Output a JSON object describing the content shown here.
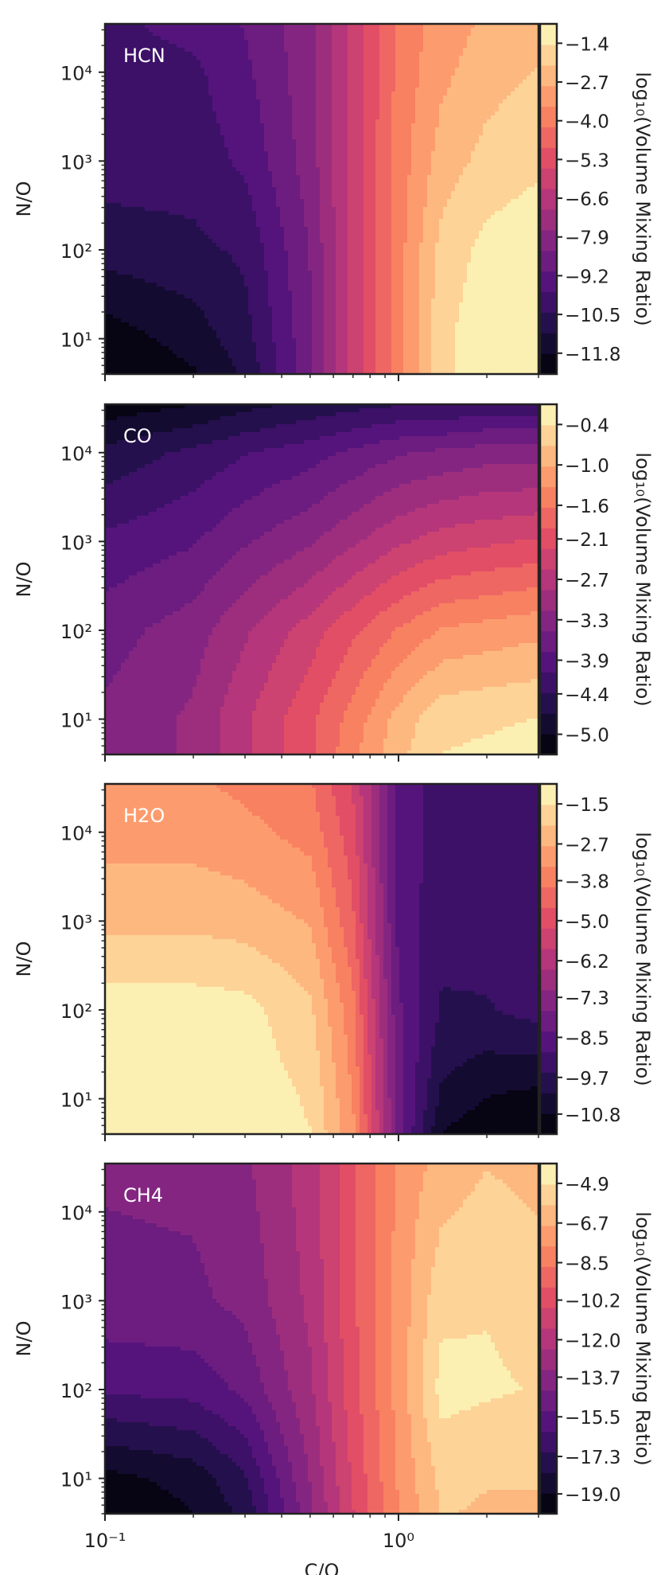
{
  "colors": {
    "colormap": "magma",
    "text_color": "#222222",
    "frame_color": "#222222",
    "panel_label_color": "#ffffff"
  },
  "chart_data": [
    {
      "type": "heatmap",
      "label": "HCN",
      "xlabel": "",
      "ylabel": "N/O",
      "xscale": "log",
      "yscale": "log",
      "xlim": [
        0.1,
        3.0
      ],
      "ylim": [
        4,
        35000
      ],
      "xticks": [
        {
          "value": 0.1,
          "label": "10⁻¹"
        },
        {
          "value": 1,
          "label": "10⁰"
        }
      ],
      "yticks": [
        {
          "value": 10,
          "label": "10¹"
        },
        {
          "value": 100,
          "label": "10²"
        },
        {
          "value": 1000,
          "label": "10³"
        },
        {
          "value": 10000,
          "label": "10⁴"
        }
      ],
      "colorbar_label": "log₁₀(Volume Mixing Ratio)",
      "colorbar_ticks": [
        -1.4,
        -2.7,
        -4.0,
        -5.3,
        -6.6,
        -7.9,
        -9.2,
        -10.5,
        -11.8
      ],
      "colorbar_tick_labels": [
        "−1.4",
        "−2.7",
        "−4.0",
        "−5.3",
        "−6.6",
        "−7.9",
        "−9.2",
        "−10.5",
        "−11.8"
      ],
      "colorbar_range": [
        -12.5,
        -0.75
      ],
      "x": [
        0.1,
        0.2,
        0.3,
        0.5,
        0.7,
        1.0,
        1.4,
        2.0,
        3.0
      ],
      "y": [
        4,
        10,
        100,
        1000,
        10000,
        35000
      ],
      "z": [
        [
          -12.5,
          -11.9,
          -11.0,
          -8.5,
          -6.0,
          -3.8,
          -1.6,
          -1.0,
          -0.8
        ],
        [
          -12.2,
          -11.5,
          -10.7,
          -8.5,
          -6.0,
          -3.8,
          -1.6,
          -1.0,
          -0.8
        ],
        [
          -10.8,
          -10.6,
          -10.3,
          -8.3,
          -6.0,
          -3.8,
          -1.9,
          -1.2,
          -0.9
        ],
        [
          -10.1,
          -10.1,
          -9.6,
          -8.0,
          -6.0,
          -3.9,
          -2.5,
          -1.9,
          -1.6
        ],
        [
          -10.0,
          -9.9,
          -9.2,
          -7.9,
          -6.0,
          -4.0,
          -3.0,
          -2.4,
          -2.1
        ],
        [
          -9.9,
          -9.5,
          -9.0,
          -7.9,
          -6.0,
          -4.0,
          -3.2,
          -2.7,
          -2.4
        ]
      ]
    },
    {
      "type": "heatmap",
      "label": "CO",
      "xlabel": "",
      "ylabel": "N/O",
      "xscale": "log",
      "yscale": "log",
      "xlim": [
        0.1,
        3.0
      ],
      "ylim": [
        4,
        35000
      ],
      "xticks": [
        {
          "value": 0.1,
          "label": "10⁻¹"
        },
        {
          "value": 1,
          "label": "10⁰"
        }
      ],
      "yticks": [
        {
          "value": 10,
          "label": "10¹"
        },
        {
          "value": 100,
          "label": "10²"
        },
        {
          "value": 1000,
          "label": "10³"
        },
        {
          "value": 10000,
          "label": "10⁴"
        }
      ],
      "colorbar_label": "log₁₀(Volume Mixing Ratio)",
      "colorbar_ticks": [
        -0.4,
        -1.0,
        -1.6,
        -2.1,
        -2.7,
        -3.3,
        -3.9,
        -4.4,
        -5.0
      ],
      "colorbar_tick_labels": [
        "−0.4",
        "−1.0",
        "−1.6",
        "−2.1",
        "−2.7",
        "−3.3",
        "−3.9",
        "−4.4",
        "−5.0"
      ],
      "colorbar_range": [
        -5.3,
        -0.1
      ],
      "x": [
        0.1,
        0.2,
        0.3,
        0.5,
        0.7,
        1.0,
        1.4,
        2.0,
        3.0
      ],
      "y": [
        4,
        10,
        100,
        1000,
        10000,
        35000
      ],
      "z": [
        [
          -3.4,
          -3.1,
          -2.6,
          -2.0,
          -1.4,
          -0.8,
          -0.4,
          -0.35,
          -0.3
        ],
        [
          -3.4,
          -3.1,
          -2.6,
          -2.0,
          -1.5,
          -0.9,
          -0.5,
          -0.45,
          -0.4
        ],
        [
          -3.6,
          -3.3,
          -2.9,
          -2.4,
          -2.0,
          -1.6,
          -1.3,
          -1.2,
          -1.1
        ],
        [
          -4.0,
          -3.8,
          -3.5,
          -3.2,
          -2.9,
          -2.6,
          -2.4,
          -2.3,
          -2.2
        ],
        [
          -4.6,
          -4.3,
          -4.1,
          -3.9,
          -3.7,
          -3.5,
          -3.4,
          -3.3,
          -3.3
        ],
        [
          -5.2,
          -5.0,
          -4.8,
          -4.6,
          -4.5,
          -4.4,
          -4.4,
          -4.3,
          -4.3
        ]
      ]
    },
    {
      "type": "heatmap",
      "label": "H2O",
      "xlabel": "",
      "ylabel": "N/O",
      "xscale": "log",
      "yscale": "log",
      "xlim": [
        0.1,
        3.0
      ],
      "ylim": [
        4,
        35000
      ],
      "xticks": [
        {
          "value": 0.1,
          "label": "10⁻¹"
        },
        {
          "value": 1,
          "label": "10⁰"
        }
      ],
      "yticks": [
        {
          "value": 10,
          "label": "10¹"
        },
        {
          "value": 100,
          "label": "10²"
        },
        {
          "value": 1000,
          "label": "10³"
        },
        {
          "value": 10000,
          "label": "10⁴"
        }
      ],
      "colorbar_label": "log₁₀(Volume Mixing Ratio)",
      "colorbar_ticks": [
        -1.5,
        -2.7,
        -3.8,
        -5.0,
        -6.2,
        -7.3,
        -8.5,
        -9.7,
        -10.8
      ],
      "colorbar_tick_labels": [
        "−1.5",
        "−2.7",
        "−3.8",
        "−5.0",
        "−6.2",
        "−7.3",
        "−8.5",
        "−9.7",
        "−10.8"
      ],
      "colorbar_range": [
        -11.4,
        -0.9
      ],
      "x": [
        0.1,
        0.2,
        0.3,
        0.5,
        0.7,
        1.0,
        1.4,
        2.0,
        3.0
      ],
      "y": [
        4,
        10,
        100,
        1000,
        10000,
        35000
      ],
      "z": [
        [
          -1.0,
          -1.0,
          -1.1,
          -1.5,
          -3.2,
          -8.0,
          -10.8,
          -11.3,
          -11.4
        ],
        [
          -1.0,
          -1.0,
          -1.1,
          -1.6,
          -3.4,
          -8.0,
          -10.3,
          -10.8,
          -11.0
        ],
        [
          -1.2,
          -1.2,
          -1.3,
          -2.0,
          -3.8,
          -8.2,
          -9.6,
          -9.6,
          -9.3
        ],
        [
          -2.3,
          -2.3,
          -2.4,
          -2.8,
          -4.5,
          -8.5,
          -9.4,
          -9.3,
          -9.0
        ],
        [
          -3.0,
          -3.0,
          -3.2,
          -3.6,
          -5.0,
          -8.5,
          -9.2,
          -9.2,
          -9.0
        ],
        [
          -3.2,
          -3.3,
          -3.5,
          -3.9,
          -5.3,
          -8.5,
          -9.2,
          -9.2,
          -9.0
        ]
      ]
    },
    {
      "type": "heatmap",
      "label": "CH4",
      "xlabel": "C/O",
      "ylabel": "N/O",
      "xscale": "log",
      "yscale": "log",
      "xlim": [
        0.1,
        3.0
      ],
      "ylim": [
        4,
        35000
      ],
      "xticks": [
        {
          "value": 0.1,
          "label": "10⁻¹"
        },
        {
          "value": 1,
          "label": "10⁰"
        }
      ],
      "yticks": [
        {
          "value": 10,
          "label": "10¹"
        },
        {
          "value": 100,
          "label": "10²"
        },
        {
          "value": 1000,
          "label": "10³"
        },
        {
          "value": 10000,
          "label": "10⁴"
        }
      ],
      "colorbar_label": "log₁₀(Volume Mixing Ratio)",
      "colorbar_ticks": [
        -4.9,
        -6.7,
        -8.5,
        -10.2,
        -12.0,
        -13.7,
        -15.5,
        -17.3,
        -19.0
      ],
      "colorbar_tick_labels": [
        "−4.9",
        "−6.7",
        "−8.5",
        "−10.2",
        "−12.0",
        "−13.7",
        "−15.5",
        "−17.3",
        "−19.0"
      ],
      "colorbar_range": [
        -19.9,
        -4.0
      ],
      "x": [
        0.1,
        0.2,
        0.3,
        0.5,
        0.7,
        1.0,
        1.4,
        2.0,
        3.0
      ],
      "y": [
        4,
        10,
        100,
        1000,
        10000,
        35000
      ],
      "z": [
        [
          -19.8,
          -19.0,
          -17.8,
          -13.6,
          -10.6,
          -7.8,
          -5.8,
          -6.0,
          -6.0
        ],
        [
          -19.3,
          -18.6,
          -17.2,
          -13.3,
          -10.4,
          -7.6,
          -5.6,
          -5.8,
          -5.8
        ],
        [
          -16.0,
          -15.8,
          -15.0,
          -12.6,
          -10.0,
          -7.4,
          -4.6,
          -4.8,
          -5.0
        ],
        [
          -14.6,
          -14.5,
          -14.0,
          -12.2,
          -9.8,
          -7.4,
          -5.2,
          -5.0,
          -5.3
        ],
        [
          -14.3,
          -14.2,
          -13.7,
          -12.0,
          -9.8,
          -7.5,
          -6.0,
          -5.6,
          -5.9
        ],
        [
          -14.2,
          -13.9,
          -13.5,
          -12.0,
          -9.8,
          -7.6,
          -6.4,
          -5.9,
          -6.2
        ]
      ]
    }
  ]
}
